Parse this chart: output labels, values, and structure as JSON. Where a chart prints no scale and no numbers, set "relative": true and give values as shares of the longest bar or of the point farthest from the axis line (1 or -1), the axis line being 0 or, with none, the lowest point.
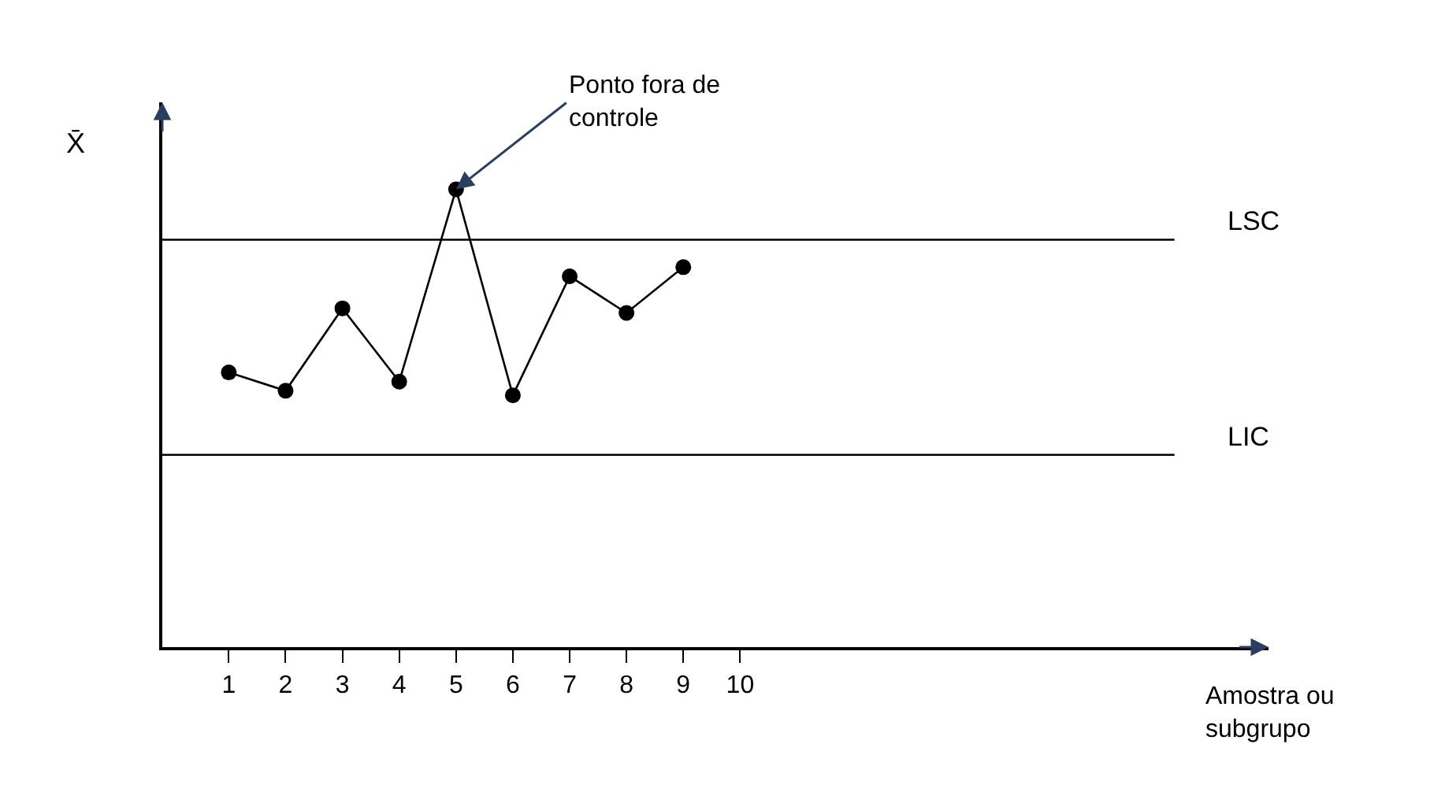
{
  "chart_data": {
    "type": "line",
    "relative": true,
    "ylabel": "X̄",
    "categories": [
      "1",
      "2",
      "3",
      "4",
      "5",
      "6",
      "7",
      "8",
      "9",
      "10"
    ],
    "series": [
      {
        "color": "#000000",
        "values": [
          0.6,
          0.56,
          0.74,
          0.58,
          1,
          0.55,
          0.81,
          0.73,
          0.83,
          null
        ]
      }
    ],
    "marker": "circle",
    "line_style": "solid",
    "tick_labels": "x",
    "ref_lines": [
      {
        "axis": "y",
        "value": 0.89,
        "label": "LSC",
        "color": "#000000"
      },
      {
        "axis": "y",
        "value": 0.42,
        "label": "LIC",
        "color": "#000000"
      }
    ],
    "annotations": [
      {
        "text": "Ponto fora de controle",
        "x": "5",
        "y": 1
      },
      "Amostra ou subgrupo"
    ]
  }
}
